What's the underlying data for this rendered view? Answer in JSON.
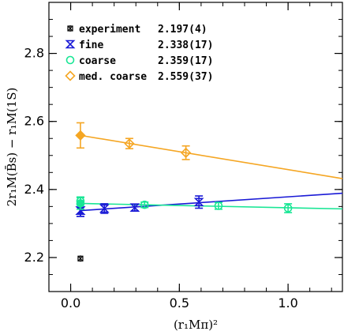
{
  "chart_data": {
    "type": "scatter",
    "xlabel": "(r₁Mπ)²",
    "ylabel": "2r₁M(B̄s) − r₁M(1S)",
    "xlim": [
      -0.1,
      1.25
    ],
    "ylim": [
      2.1,
      2.95
    ],
    "x_ticks": [
      {
        "value": 0,
        "label": "0.0"
      },
      {
        "value": 0.5,
        "label": "0.5"
      },
      {
        "value": 1.0,
        "label": "1.0"
      }
    ],
    "y_ticks": [
      {
        "value": 2.2,
        "label": "2.2"
      },
      {
        "value": 2.4,
        "label": "2.4"
      },
      {
        "value": 2.6,
        "label": "2.6"
      },
      {
        "value": 2.8,
        "label": "2.8"
      }
    ],
    "grid": false,
    "legend_position": "top-left",
    "series": [
      {
        "name": "experiment",
        "value_label": "2.197(4)",
        "color": "#000000",
        "marker": "asterisk-box",
        "points": [
          {
            "x": 0.045,
            "y": 2.197,
            "err": 0.004
          }
        ]
      },
      {
        "name": "fine",
        "value_label": "2.338(17)",
        "color": "#1a1ad6",
        "marker": "bowtie",
        "points": [
          {
            "x": 0.045,
            "y": 2.338,
            "err": 0.017
          },
          {
            "x": 0.155,
            "y": 2.344,
            "err": 0.014
          },
          {
            "x": 0.295,
            "y": 2.347,
            "err": 0.01
          },
          {
            "x": 0.59,
            "y": 2.363,
            "err": 0.018
          }
        ],
        "fit": {
          "x": [
            0.045,
            1.25
          ],
          "y": [
            2.338,
            2.389
          ]
        },
        "fit_point": {
          "x": 0.045,
          "y": 2.338,
          "err": 0.017
        }
      },
      {
        "name": "coarse",
        "value_label": "2.359(17)",
        "color": "#19e695",
        "marker": "circle",
        "points": [
          {
            "x": 0.045,
            "y": 2.366,
            "err": 0.012
          },
          {
            "x": 0.34,
            "y": 2.355,
            "err": 0.008
          },
          {
            "x": 0.68,
            "y": 2.352,
            "err": 0.01
          },
          {
            "x": 1.0,
            "y": 2.345,
            "err": 0.013
          }
        ],
        "fit": {
          "x": [
            0.045,
            1.25
          ],
          "y": [
            2.359,
            2.343
          ]
        },
        "fit_point": {
          "x": 0.045,
          "y": 2.359,
          "err": 0.017
        }
      },
      {
        "name": "med. coarse",
        "value_label": "2.559(37)",
        "color": "#f5a623",
        "marker": "diamond",
        "points": [
          {
            "x": 0.27,
            "y": 2.535,
            "err": 0.015
          },
          {
            "x": 0.53,
            "y": 2.508,
            "err": 0.02
          }
        ],
        "fit": {
          "x": [
            0.045,
            1.25
          ],
          "y": [
            2.559,
            2.432
          ]
        },
        "fit_point": {
          "x": 0.045,
          "y": 2.559,
          "err": 0.037
        }
      }
    ]
  }
}
